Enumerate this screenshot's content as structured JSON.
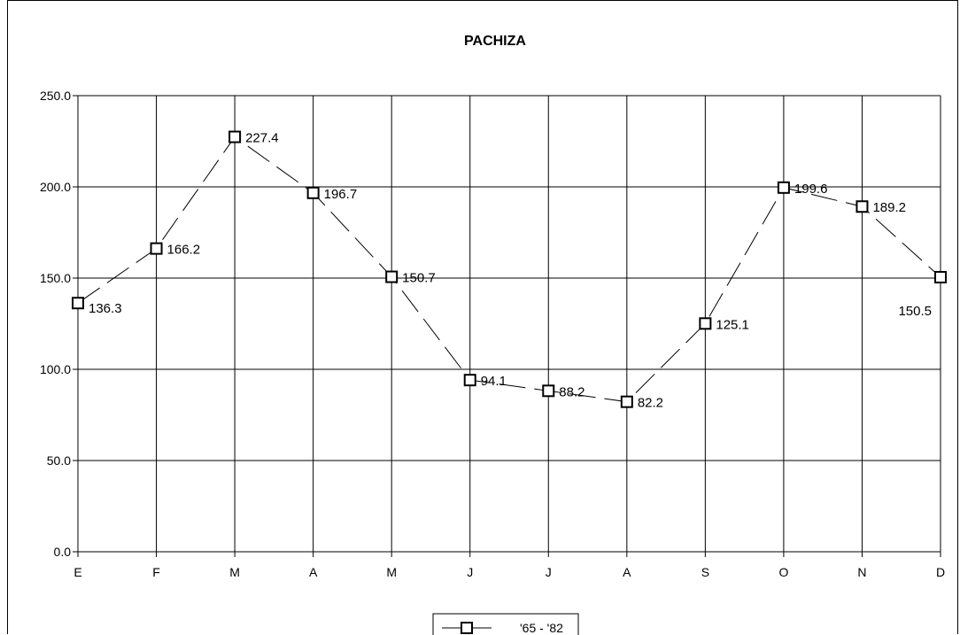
{
  "chart_data": {
    "type": "line",
    "title": "PACHIZA",
    "xlabel": "",
    "ylabel": "",
    "categories": [
      "E",
      "F",
      "M",
      "A",
      "M",
      "J",
      "J",
      "A",
      "S",
      "O",
      "N",
      "D"
    ],
    "series": [
      {
        "name": "'65 - '82",
        "values": [
          136.3,
          166.2,
          227.4,
          196.7,
          150.7,
          94.1,
          88.2,
          82.2,
          125.1,
          199.6,
          189.2,
          150.5
        ],
        "labels": [
          "136.3",
          "166.2",
          "227.4",
          "196.7",
          "150.7",
          "94.1",
          "88.2",
          "82.2",
          "125.1",
          "199.6",
          "189.2",
          "150.5"
        ],
        "line_style": "dashed",
        "marker": "square"
      }
    ],
    "ylim": [
      0,
      250
    ],
    "yticks": [
      "0.0",
      "50.0",
      "100.0",
      "150.0",
      "200.0",
      "250.0"
    ],
    "grid": true,
    "legend_position": "bottom"
  }
}
